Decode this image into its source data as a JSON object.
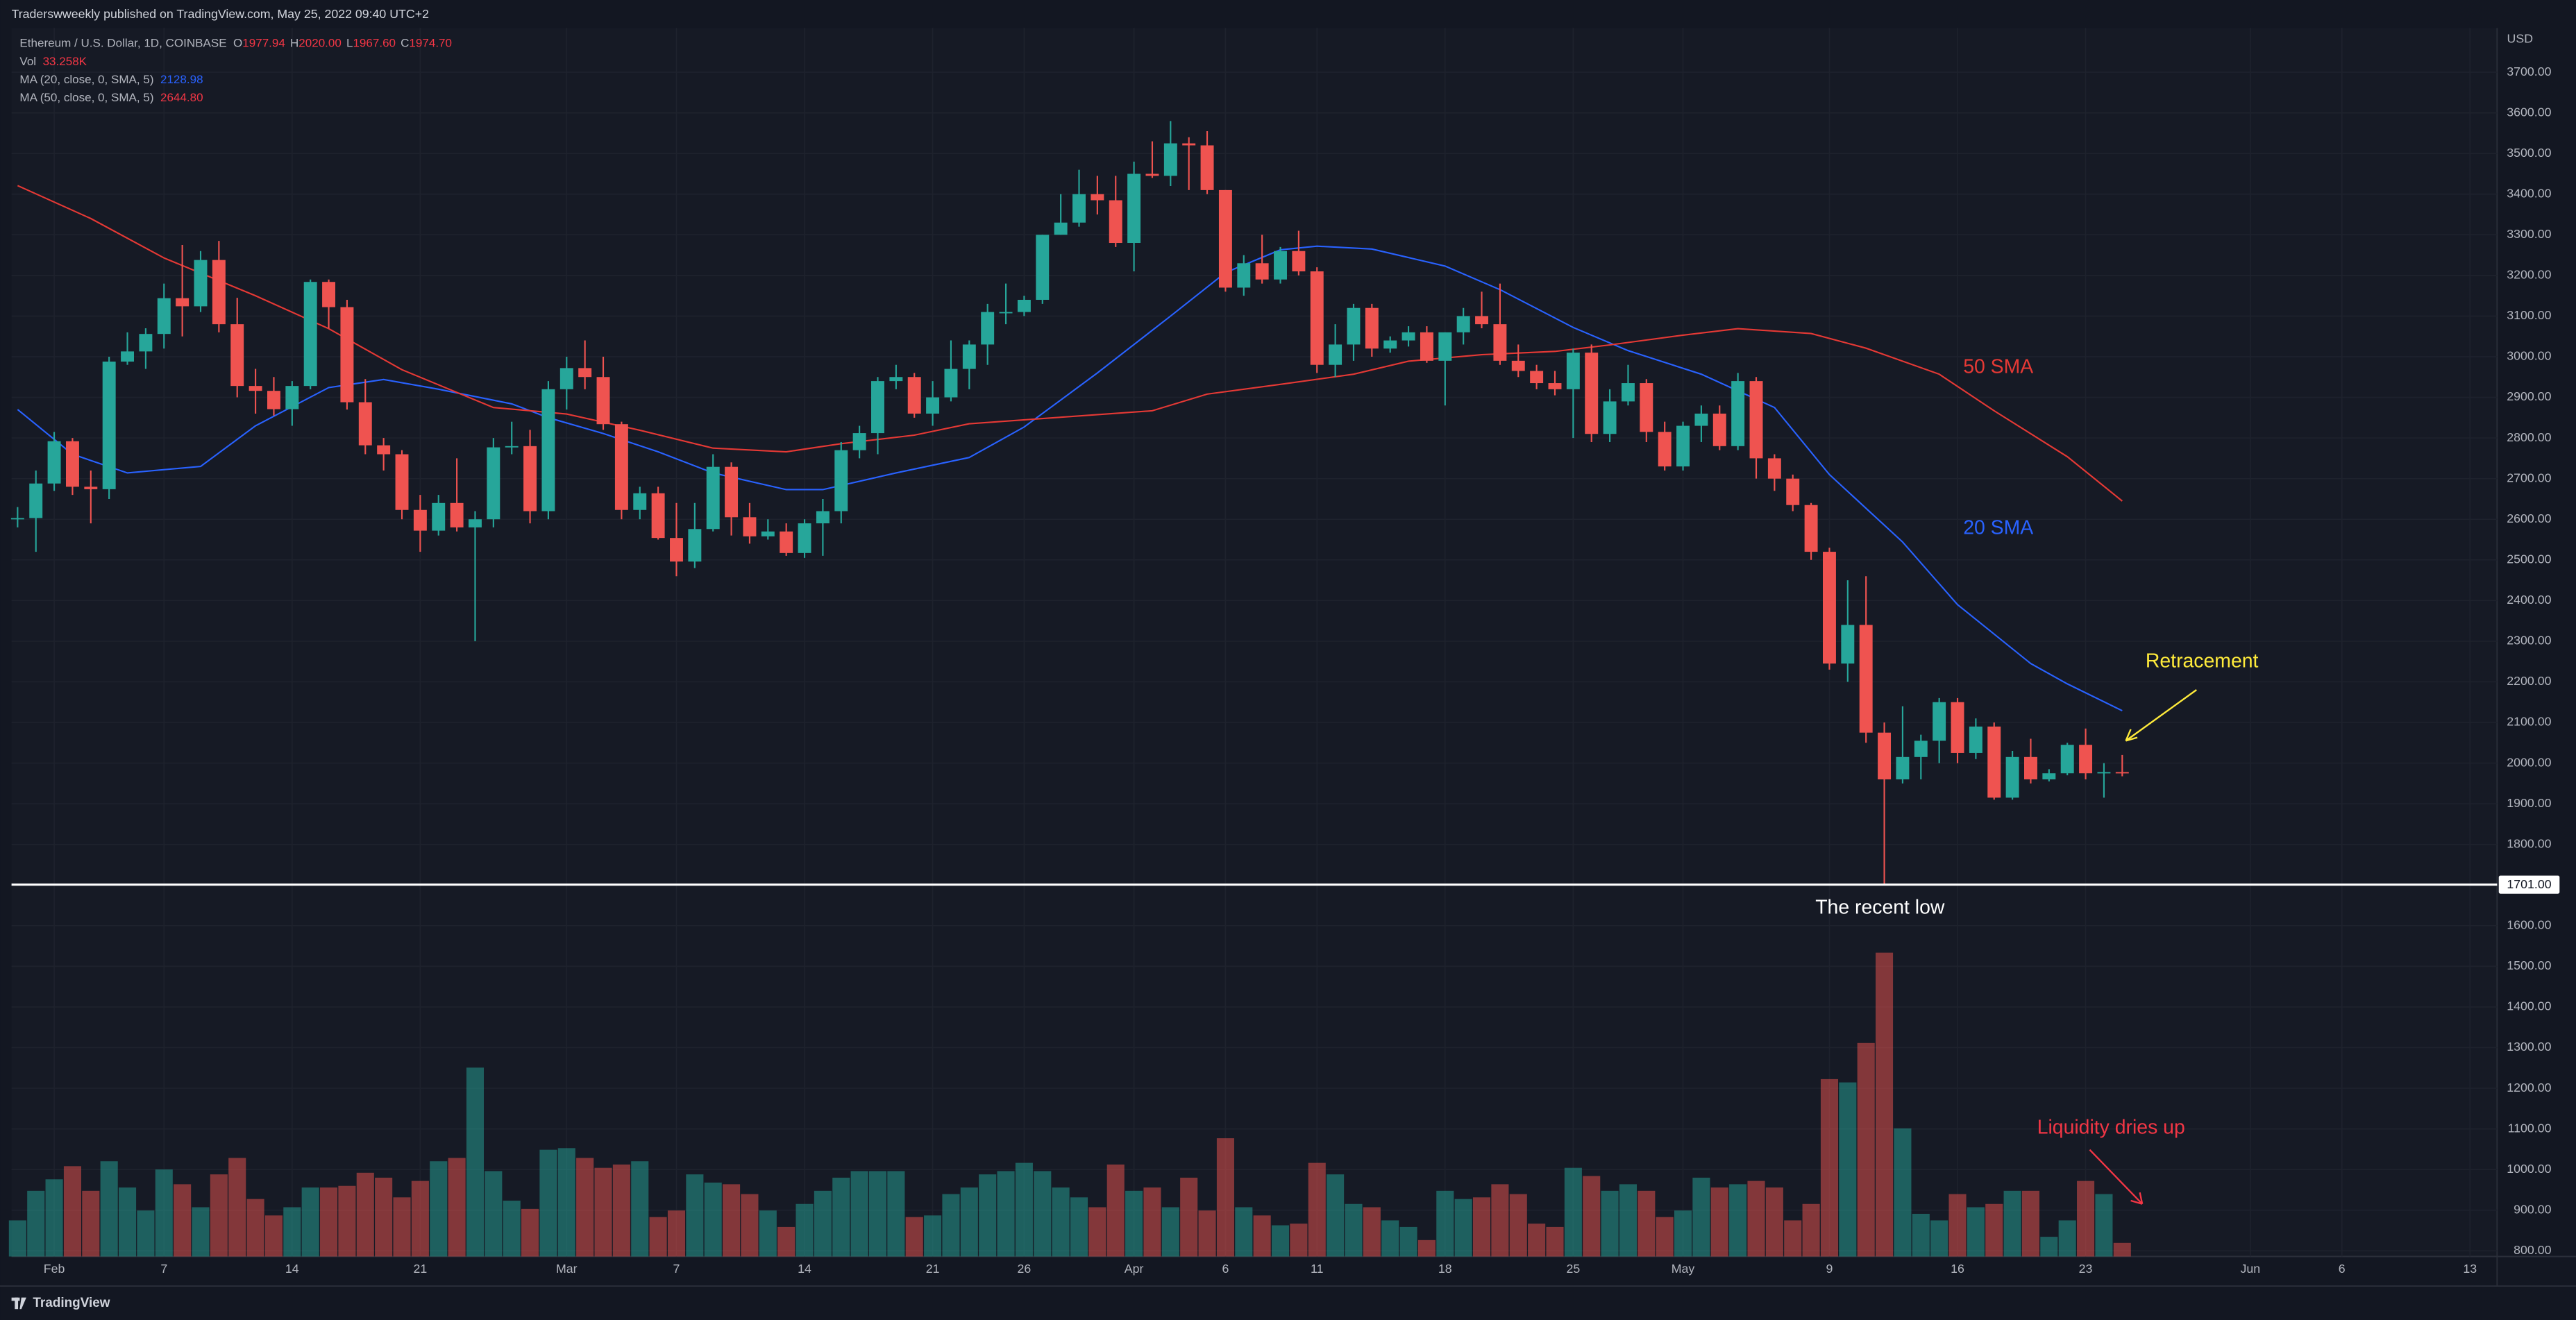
{
  "header": "Traderswweekly published on TradingView.com, May 25, 2022 09:40 UTC+2",
  "legend": {
    "symbol": "Ethereum / U.S. Dollar, 1D, COINBASE",
    "ohlc": [
      {
        "name": "O",
        "value": "1977.94"
      },
      {
        "name": "H",
        "value": "2020.00"
      },
      {
        "name": "L",
        "value": "1967.60"
      },
      {
        "name": "C",
        "value": "1974.70"
      }
    ],
    "vol_name": "Vol",
    "vol_value": "33.258K",
    "ma": [
      {
        "name": "MA (20, close, 0, SMA, 5)",
        "value": "2128.98",
        "color": "#2962ff"
      },
      {
        "name": "MA (50, close, 0, SMA, 5)",
        "value": "2644.80",
        "color": "#f23645"
      }
    ]
  },
  "footer": "TradingView",
  "chart_data": {
    "type": "candlestick",
    "currency": "USD",
    "up_color": "#26a69a",
    "down_color": "#ef5350",
    "grid": true,
    "ylim": [
      786,
      3809
    ],
    "yticks": [
      {
        "value": 800,
        "label": "800.00"
      },
      {
        "value": 900,
        "label": "900.00"
      },
      {
        "value": 1000,
        "label": "1000.00"
      },
      {
        "value": 1100,
        "label": "1100.00"
      },
      {
        "value": 1200,
        "label": "1200.00"
      },
      {
        "value": 1300,
        "label": "1300.00"
      },
      {
        "value": 1400,
        "label": "1400.00"
      },
      {
        "value": 1500,
        "label": "1500.00"
      },
      {
        "value": 1600,
        "label": "1600.00"
      },
      {
        "value": 1800,
        "label": "1800.00"
      },
      {
        "value": 1900,
        "label": "1900.00"
      },
      {
        "value": 2000,
        "label": "2000.00"
      },
      {
        "value": 2100,
        "label": "2100.00"
      },
      {
        "value": 2200,
        "label": "2200.00"
      },
      {
        "value": 2300,
        "label": "2300.00"
      },
      {
        "value": 2400,
        "label": "2400.00"
      },
      {
        "value": 2500,
        "label": "2500.00"
      },
      {
        "value": 2600,
        "label": "2600.00"
      },
      {
        "value": 2700,
        "label": "2700.00"
      },
      {
        "value": 2800,
        "label": "2800.00"
      },
      {
        "value": 2900,
        "label": "2900.00"
      },
      {
        "value": 3000,
        "label": "3000.00"
      },
      {
        "value": 3100,
        "label": "3100.00"
      },
      {
        "value": 3200,
        "label": "3200.00"
      },
      {
        "value": 3300,
        "label": "3300.00"
      },
      {
        "value": 3400,
        "label": "3400.00"
      },
      {
        "value": 3500,
        "label": "3500.00"
      },
      {
        "value": 3600,
        "label": "3600.00"
      },
      {
        "value": 3700,
        "label": "3700.00"
      }
    ],
    "xticks": [
      {
        "value": "2022-02-01",
        "label": "Feb"
      },
      {
        "value": "2022-02-07",
        "label": "7"
      },
      {
        "value": "2022-02-14",
        "label": "14"
      },
      {
        "value": "2022-02-21",
        "label": "21"
      },
      {
        "value": "2022-03-01",
        "label": "Mar"
      },
      {
        "value": "2022-03-07",
        "label": "7"
      },
      {
        "value": "2022-03-14",
        "label": "14"
      },
      {
        "value": "2022-03-21",
        "label": "21"
      },
      {
        "value": "2022-03-26",
        "label": "26"
      },
      {
        "value": "2022-04-01",
        "label": "Apr"
      },
      {
        "value": "2022-04-06",
        "label": "6"
      },
      {
        "value": "2022-04-11",
        "label": "11"
      },
      {
        "value": "2022-04-18",
        "label": "18"
      },
      {
        "value": "2022-04-25",
        "label": "25"
      },
      {
        "value": "2022-05-01",
        "label": "May"
      },
      {
        "value": "2022-05-09",
        "label": "9"
      },
      {
        "value": "2022-05-16",
        "label": "16"
      },
      {
        "value": "2022-05-23",
        "label": "23"
      },
      {
        "value": "2022-06-01",
        "label": "Jun"
      },
      {
        "value": "2022-06-06",
        "label": "6"
      },
      {
        "value": "2022-06-13",
        "label": "13"
      }
    ],
    "dates": [
      "2022-01-30",
      "2022-01-31",
      "2022-02-01",
      "2022-02-02",
      "2022-02-03",
      "2022-02-04",
      "2022-02-05",
      "2022-02-06",
      "2022-02-07",
      "2022-02-08",
      "2022-02-09",
      "2022-02-10",
      "2022-02-11",
      "2022-02-12",
      "2022-02-13",
      "2022-02-14",
      "2022-02-15",
      "2022-02-16",
      "2022-02-17",
      "2022-02-18",
      "2022-02-19",
      "2022-02-20",
      "2022-02-21",
      "2022-02-22",
      "2022-02-23",
      "2022-02-24",
      "2022-02-25",
      "2022-02-26",
      "2022-02-27",
      "2022-02-28",
      "2022-03-01",
      "2022-03-02",
      "2022-03-03",
      "2022-03-04",
      "2022-03-05",
      "2022-03-06",
      "2022-03-07",
      "2022-03-08",
      "2022-03-09",
      "2022-03-10",
      "2022-03-11",
      "2022-03-12",
      "2022-03-13",
      "2022-03-14",
      "2022-03-15",
      "2022-03-16",
      "2022-03-17",
      "2022-03-18",
      "2022-03-19",
      "2022-03-20",
      "2022-03-21",
      "2022-03-22",
      "2022-03-23",
      "2022-03-24",
      "2022-03-25",
      "2022-03-26",
      "2022-03-27",
      "2022-03-28",
      "2022-03-29",
      "2022-03-30",
      "2022-03-31",
      "2022-04-01",
      "2022-04-02",
      "2022-04-03",
      "2022-04-04",
      "2022-04-05",
      "2022-04-06",
      "2022-04-07",
      "2022-04-08",
      "2022-04-09",
      "2022-04-10",
      "2022-04-11",
      "2022-04-12",
      "2022-04-13",
      "2022-04-14",
      "2022-04-15",
      "2022-04-16",
      "2022-04-17",
      "2022-04-18",
      "2022-04-19",
      "2022-04-20",
      "2022-04-21",
      "2022-04-22",
      "2022-04-23",
      "2022-04-24",
      "2022-04-25",
      "2022-04-26",
      "2022-04-27",
      "2022-04-28",
      "2022-04-29",
      "2022-04-30",
      "2022-05-01",
      "2022-05-02",
      "2022-05-03",
      "2022-05-04",
      "2022-05-05",
      "2022-05-06",
      "2022-05-07",
      "2022-05-08",
      "2022-05-09",
      "2022-05-10",
      "2022-05-11",
      "2022-05-12",
      "2022-05-13",
      "2022-05-14",
      "2022-05-15",
      "2022-05-16",
      "2022-05-17",
      "2022-05-18",
      "2022-05-19",
      "2022-05-20",
      "2022-05-21",
      "2022-05-22",
      "2022-05-23",
      "2022-05-24",
      "2022-05-25"
    ],
    "ohlc": [
      [
        2600,
        2630,
        2580,
        2603
      ],
      [
        2603,
        2720,
        2520,
        2688
      ],
      [
        2688,
        2815,
        2670,
        2792
      ],
      [
        2792,
        2800,
        2660,
        2680
      ],
      [
        2680,
        2720,
        2590,
        2674
      ],
      [
        2674,
        3000,
        2650,
        2988
      ],
      [
        2988,
        3060,
        2980,
        3013
      ],
      [
        3013,
        3070,
        2970,
        3056
      ],
      [
        3056,
        3180,
        3020,
        3144
      ],
      [
        3144,
        3275,
        3050,
        3124
      ],
      [
        3124,
        3260,
        3110,
        3238
      ],
      [
        3238,
        3285,
        3060,
        3080
      ],
      [
        3080,
        3145,
        2900,
        2928
      ],
      [
        2928,
        2970,
        2860,
        2916
      ],
      [
        2916,
        2950,
        2855,
        2871
      ],
      [
        2871,
        2940,
        2830,
        2928
      ],
      [
        2928,
        3190,
        2920,
        3184
      ],
      [
        3184,
        3190,
        3070,
        3122
      ],
      [
        3122,
        3140,
        2870,
        2888
      ],
      [
        2888,
        2945,
        2760,
        2782
      ],
      [
        2782,
        2800,
        2720,
        2760
      ],
      [
        2760,
        2770,
        2600,
        2623
      ],
      [
        2623,
        2660,
        2520,
        2572
      ],
      [
        2572,
        2660,
        2560,
        2640
      ],
      [
        2640,
        2750,
        2570,
        2580
      ],
      [
        2580,
        2620,
        2300,
        2600
      ],
      [
        2600,
        2800,
        2580,
        2777
      ],
      [
        2777,
        2840,
        2760,
        2780
      ],
      [
        2780,
        2820,
        2590,
        2620
      ],
      [
        2620,
        2940,
        2600,
        2920
      ],
      [
        2920,
        3000,
        2870,
        2972
      ],
      [
        2972,
        3040,
        2920,
        2950
      ],
      [
        2950,
        3000,
        2820,
        2834
      ],
      [
        2834,
        2840,
        2600,
        2623
      ],
      [
        2623,
        2680,
        2600,
        2664
      ],
      [
        2664,
        2680,
        2550,
        2554
      ],
      [
        2554,
        2640,
        2460,
        2496
      ],
      [
        2496,
        2640,
        2480,
        2576
      ],
      [
        2576,
        2760,
        2570,
        2729
      ],
      [
        2729,
        2740,
        2560,
        2605
      ],
      [
        2605,
        2640,
        2540,
        2558
      ],
      [
        2558,
        2600,
        2550,
        2570
      ],
      [
        2570,
        2590,
        2510,
        2517
      ],
      [
        2517,
        2600,
        2505,
        2590
      ],
      [
        2590,
        2650,
        2510,
        2620
      ],
      [
        2620,
        2790,
        2590,
        2770
      ],
      [
        2770,
        2830,
        2750,
        2812
      ],
      [
        2812,
        2950,
        2760,
        2940
      ],
      [
        2940,
        2980,
        2920,
        2950
      ],
      [
        2950,
        2960,
        2850,
        2860
      ],
      [
        2860,
        2940,
        2830,
        2900
      ],
      [
        2900,
        3040,
        2890,
        2970
      ],
      [
        2970,
        3040,
        2920,
        3030
      ],
      [
        3030,
        3130,
        2980,
        3110
      ],
      [
        3110,
        3180,
        3080,
        3110
      ],
      [
        3110,
        3150,
        3100,
        3140
      ],
      [
        3140,
        3300,
        3130,
        3300
      ],
      [
        3300,
        3400,
        3300,
        3330
      ],
      [
        3330,
        3460,
        3320,
        3400
      ],
      [
        3400,
        3445,
        3350,
        3385
      ],
      [
        3385,
        3445,
        3270,
        3280
      ],
      [
        3280,
        3480,
        3210,
        3450
      ],
      [
        3450,
        3530,
        3440,
        3445
      ],
      [
        3445,
        3580,
        3420,
        3525
      ],
      [
        3525,
        3540,
        3410,
        3520
      ],
      [
        3520,
        3555,
        3400,
        3410
      ],
      [
        3410,
        3410,
        3160,
        3170
      ],
      [
        3170,
        3250,
        3150,
        3230
      ],
      [
        3230,
        3300,
        3180,
        3190
      ],
      [
        3190,
        3270,
        3180,
        3260
      ],
      [
        3260,
        3310,
        3200,
        3210
      ],
      [
        3210,
        3220,
        2960,
        2980
      ],
      [
        2980,
        3080,
        2950,
        3030
      ],
      [
        3030,
        3130,
        2990,
        3120
      ],
      [
        3120,
        3130,
        3000,
        3020
      ],
      [
        3020,
        3050,
        3010,
        3040
      ],
      [
        3040,
        3075,
        3025,
        3060
      ],
      [
        3060,
        3075,
        2985,
        2990
      ],
      [
        2990,
        3060,
        2880,
        3060
      ],
      [
        3060,
        3120,
        3030,
        3100
      ],
      [
        3100,
        3160,
        3070,
        3080
      ],
      [
        3080,
        3180,
        2980,
        2990
      ],
      [
        2990,
        3030,
        2950,
        2965
      ],
      [
        2965,
        2980,
        2920,
        2935
      ],
      [
        2935,
        2965,
        2905,
        2920
      ],
      [
        2920,
        3020,
        2800,
        3010
      ],
      [
        3010,
        3030,
        2790,
        2810
      ],
      [
        2810,
        2920,
        2790,
        2890
      ],
      [
        2890,
        2980,
        2880,
        2935
      ],
      [
        2935,
        2945,
        2790,
        2815
      ],
      [
        2815,
        2840,
        2720,
        2730
      ],
      [
        2730,
        2840,
        2720,
        2830
      ],
      [
        2830,
        2880,
        2790,
        2860
      ],
      [
        2860,
        2880,
        2770,
        2780
      ],
      [
        2780,
        2960,
        2770,
        2940
      ],
      [
        2940,
        2950,
        2700,
        2750
      ],
      [
        2750,
        2760,
        2670,
        2700
      ],
      [
        2700,
        2710,
        2620,
        2635
      ],
      [
        2635,
        2640,
        2500,
        2520
      ],
      [
        2520,
        2530,
        2230,
        2245
      ],
      [
        2245,
        2450,
        2200,
        2340
      ],
      [
        2340,
        2460,
        2050,
        2075
      ],
      [
        2075,
        2100,
        1701,
        1960
      ],
      [
        1960,
        2140,
        1950,
        2015
      ],
      [
        2015,
        2070,
        1960,
        2055
      ],
      [
        2055,
        2160,
        2000,
        2150
      ],
      [
        2150,
        2160,
        2000,
        2025
      ],
      [
        2025,
        2110,
        2010,
        2090
      ],
      [
        2090,
        2100,
        1910,
        1915
      ],
      [
        1915,
        2030,
        1910,
        2015
      ],
      [
        2015,
        2060,
        1950,
        1960
      ],
      [
        1960,
        1985,
        1955,
        1975
      ],
      [
        1975,
        2050,
        1970,
        2045
      ],
      [
        2045,
        2085,
        1960,
        1975
      ],
      [
        1975,
        2000,
        1915,
        1977.94
      ],
      [
        1977.94,
        2020,
        1967.6,
        1974.7
      ]
    ],
    "volume": [
      88,
      160,
      188,
      220,
      160,
      232,
      168,
      112,
      212,
      176,
      120,
      200,
      240,
      140,
      100,
      120,
      168,
      168,
      172,
      204,
      192,
      144,
      184,
      232,
      240,
      460,
      208,
      136,
      116,
      260,
      264,
      240,
      216,
      224,
      232,
      96,
      112,
      200,
      180,
      176,
      152,
      112,
      72,
      128,
      160,
      192,
      208,
      208,
      208,
      96,
      100,
      152,
      168,
      200,
      208,
      228,
      208,
      168,
      144,
      120,
      224,
      160,
      168,
      120,
      192,
      112,
      288,
      120,
      100,
      76,
      80,
      228,
      200,
      128,
      120,
      88,
      72,
      40,
      160,
      140,
      144,
      176,
      152,
      80,
      72,
      216,
      196,
      160,
      176,
      160,
      96,
      112,
      192,
      168,
      176,
      184,
      168,
      88,
      128,
      432,
      424,
      520,
      740,
      312,
      104,
      88,
      152,
      120,
      128,
      160,
      160,
      48,
      88,
      184,
      152,
      33.258
    ],
    "lines": [
      {
        "name": "20 SMA",
        "color": "#2962ff",
        "x": [
          "2022-01-30",
          "2022-02-02",
          "2022-02-05",
          "2022-02-09",
          "2022-02-12",
          "2022-02-16",
          "2022-02-19",
          "2022-02-22",
          "2022-02-26",
          "2022-02-28",
          "2022-03-03",
          "2022-03-06",
          "2022-03-09",
          "2022-03-13",
          "2022-03-15",
          "2022-03-19",
          "2022-03-23",
          "2022-03-26",
          "2022-03-30",
          "2022-04-03",
          "2022-04-06",
          "2022-04-09",
          "2022-04-11",
          "2022-04-14",
          "2022-04-18",
          "2022-04-21",
          "2022-04-25",
          "2022-04-28",
          "2022-05-02",
          "2022-05-06",
          "2022-05-09",
          "2022-05-13",
          "2022-05-16",
          "2022-05-20",
          "2022-05-22",
          "2022-05-25"
        ],
        "values": [
          2870,
          2760,
          2714,
          2730,
          2830,
          2924,
          2944,
          2920,
          2884,
          2850,
          2811,
          2766,
          2714,
          2673,
          2673,
          2714,
          2752,
          2827,
          2960,
          3100,
          3207,
          3263,
          3272,
          3265,
          3223,
          3165,
          3072,
          3015,
          2957,
          2875,
          2710,
          2544,
          2390,
          2245,
          2195,
          2128.98
        ]
      },
      {
        "name": "50 SMA",
        "color": "#e53935",
        "x": [
          "2022-01-30",
          "2022-02-03",
          "2022-02-07",
          "2022-02-12",
          "2022-02-16",
          "2022-02-20",
          "2022-02-25",
          "2022-03-01",
          "2022-03-05",
          "2022-03-09",
          "2022-03-13",
          "2022-03-16",
          "2022-03-20",
          "2022-03-23",
          "2022-03-28",
          "2022-04-02",
          "2022-04-05",
          "2022-04-09",
          "2022-04-13",
          "2022-04-16",
          "2022-04-20",
          "2022-04-24",
          "2022-04-27",
          "2022-05-01",
          "2022-05-04",
          "2022-05-08",
          "2022-05-11",
          "2022-05-15",
          "2022-05-18",
          "2022-05-22",
          "2022-05-25"
        ],
        "values": [
          3421,
          3340,
          3243,
          3150,
          3069,
          2968,
          2875,
          2859,
          2819,
          2775,
          2766,
          2786,
          2807,
          2835,
          2851,
          2867,
          2908,
          2932,
          2957,
          2989,
          3005,
          3013,
          3029,
          3053,
          3069,
          3057,
          3021,
          2957,
          2867,
          2754,
          2644.8
        ]
      }
    ],
    "hline": {
      "value": 1701,
      "label": "1701.00"
    },
    "annotations": [
      {
        "text": "Retracement",
        "color": "#ffeb3b"
      },
      {
        "text": "The recent low",
        "color": "#ffffff"
      },
      {
        "text": "Liquidity dries up",
        "color": "#f23645"
      }
    ]
  }
}
